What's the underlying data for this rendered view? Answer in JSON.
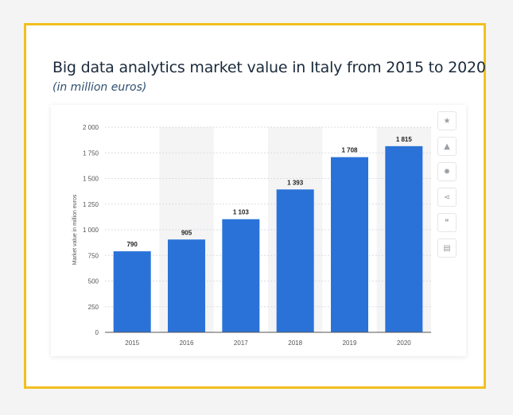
{
  "title": "Big data analytics market value in Italy from 2015 to 2020",
  "subtitle": "(in million euros)",
  "colors": {
    "bar": "#2a72d8",
    "frame": "#f2c01f",
    "band": "#f4f4f5"
  },
  "toolbar": [
    {
      "icon": "star-icon",
      "glyph": "★"
    },
    {
      "icon": "bell-icon",
      "glyph": "▲"
    },
    {
      "icon": "gear-icon",
      "glyph": "✹"
    },
    {
      "icon": "share-icon",
      "glyph": "⋖"
    },
    {
      "icon": "quote-icon",
      "glyph": "❞"
    },
    {
      "icon": "print-icon",
      "glyph": "▤"
    }
  ],
  "chart_data": {
    "type": "bar",
    "categories": [
      "2015",
      "2016",
      "2017",
      "2018",
      "2019",
      "2020"
    ],
    "values": [
      790,
      905,
      1103,
      1393,
      1708,
      1815
    ],
    "value_labels": [
      "790",
      "905",
      "1 103",
      "1 393",
      "1 708",
      "1 815"
    ],
    "ylabel": "Market value in million euros",
    "ylim": [
      0,
      2000
    ],
    "yticks": [
      0,
      250,
      500,
      750,
      1000,
      1250,
      1500,
      1750,
      2000
    ],
    "ytick_labels": [
      "0",
      "250",
      "500",
      "750",
      "1 000",
      "1 250",
      "1 500",
      "1 750",
      "2 000"
    ],
    "grid": true,
    "alternating_bands": true
  }
}
